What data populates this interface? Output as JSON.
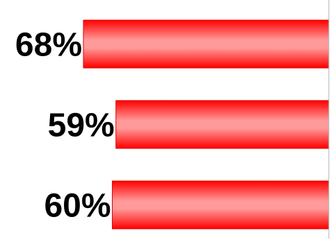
{
  "chart_data": {
    "type": "bar",
    "orientation": "horizontal",
    "bar_direction": "right-to-left",
    "categories": [
      "",
      "",
      ""
    ],
    "values": [
      68,
      59,
      60
    ],
    "data_labels": [
      "68%",
      "59%",
      "60%"
    ],
    "value_unit": "%",
    "title": "",
    "xlabel": "",
    "ylabel": "",
    "grid": false,
    "legend": "none",
    "colors": {
      "bar_dark": "#ff0000",
      "bar_light": "#ff9a9a",
      "axis": "#b0b0b0",
      "label": "#000000"
    }
  }
}
